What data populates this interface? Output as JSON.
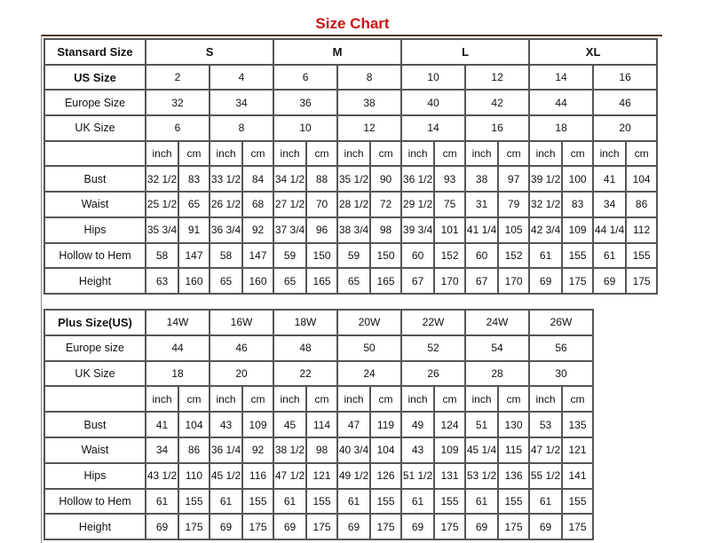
{
  "title": "Size Chart",
  "standard": {
    "header_label": "Stansard Size",
    "groups": [
      "S",
      "M",
      "L",
      "XL"
    ],
    "us_label": "US Size",
    "us": [
      "2",
      "4",
      "6",
      "8",
      "10",
      "12",
      "14",
      "16"
    ],
    "europe_label": "Europe Size",
    "europe": [
      "32",
      "34",
      "36",
      "38",
      "40",
      "42",
      "44",
      "46"
    ],
    "uk_label": "UK Size",
    "uk": [
      "6",
      "8",
      "10",
      "12",
      "14",
      "16",
      "18",
      "20"
    ],
    "unit_inch": "inch",
    "unit_cm": "cm",
    "measurements": [
      {
        "label": "Bust",
        "values": [
          "32 1/2",
          "83",
          "33 1/2",
          "84",
          "34 1/2",
          "88",
          "35 1/2",
          "90",
          "36 1/2",
          "93",
          "38",
          "97",
          "39 1/2",
          "100",
          "41",
          "104"
        ]
      },
      {
        "label": "Waist",
        "values": [
          "25 1/2",
          "65",
          "26 1/2",
          "68",
          "27 1/2",
          "70",
          "28 1/2",
          "72",
          "29 1/2",
          "75",
          "31",
          "79",
          "32 1/2",
          "83",
          "34",
          "86"
        ]
      },
      {
        "label": "Hips",
        "values": [
          "35 3/4",
          "91",
          "36 3/4",
          "92",
          "37 3/4",
          "96",
          "38 3/4",
          "98",
          "39 3/4",
          "101",
          "41 1/4",
          "105",
          "42 3/4",
          "109",
          "44 1/4",
          "112"
        ]
      },
      {
        "label": "Hollow to Hem",
        "values": [
          "58",
          "147",
          "58",
          "147",
          "59",
          "150",
          "59",
          "150",
          "60",
          "152",
          "60",
          "152",
          "61",
          "155",
          "61",
          "155"
        ]
      },
      {
        "label": "Height",
        "values": [
          "63",
          "160",
          "65",
          "160",
          "65",
          "165",
          "65",
          "165",
          "67",
          "170",
          "67",
          "170",
          "69",
          "175",
          "69",
          "175"
        ]
      }
    ]
  },
  "plus": {
    "header_label": "Plus Size(US)",
    "sizes": [
      "14W",
      "16W",
      "18W",
      "20W",
      "22W",
      "24W",
      "26W"
    ],
    "europe_label": "Europe size",
    "europe": [
      "44",
      "46",
      "48",
      "50",
      "52",
      "54",
      "56"
    ],
    "uk_label": "UK Size",
    "uk": [
      "18",
      "20",
      "22",
      "24",
      "26",
      "28",
      "30"
    ],
    "unit_inch": "inch",
    "unit_cm": "cm",
    "measurements": [
      {
        "label": "Bust",
        "values": [
          "41",
          "104",
          "43",
          "109",
          "45",
          "114",
          "47",
          "119",
          "49",
          "124",
          "51",
          "130",
          "53",
          "135"
        ]
      },
      {
        "label": "Waist",
        "values": [
          "34",
          "86",
          "36 1/4",
          "92",
          "38 1/2",
          "98",
          "40 3/4",
          "104",
          "43",
          "109",
          "45 1/4",
          "115",
          "47 1/2",
          "121"
        ]
      },
      {
        "label": "Hips",
        "values": [
          "43 1/2",
          "110",
          "45 1/2",
          "116",
          "47 1/2",
          "121",
          "49 1/2",
          "126",
          "51 1/2",
          "131",
          "53 1/2",
          "136",
          "55 1/2",
          "141"
        ]
      },
      {
        "label": "Hollow to Hem",
        "values": [
          "61",
          "155",
          "61",
          "155",
          "61",
          "155",
          "61",
          "155",
          "61",
          "155",
          "61",
          "155",
          "61",
          "155"
        ]
      },
      {
        "label": "Height",
        "values": [
          "69",
          "175",
          "69",
          "175",
          "69",
          "175",
          "69",
          "175",
          "69",
          "175",
          "69",
          "175",
          "69",
          "175"
        ]
      }
    ]
  }
}
